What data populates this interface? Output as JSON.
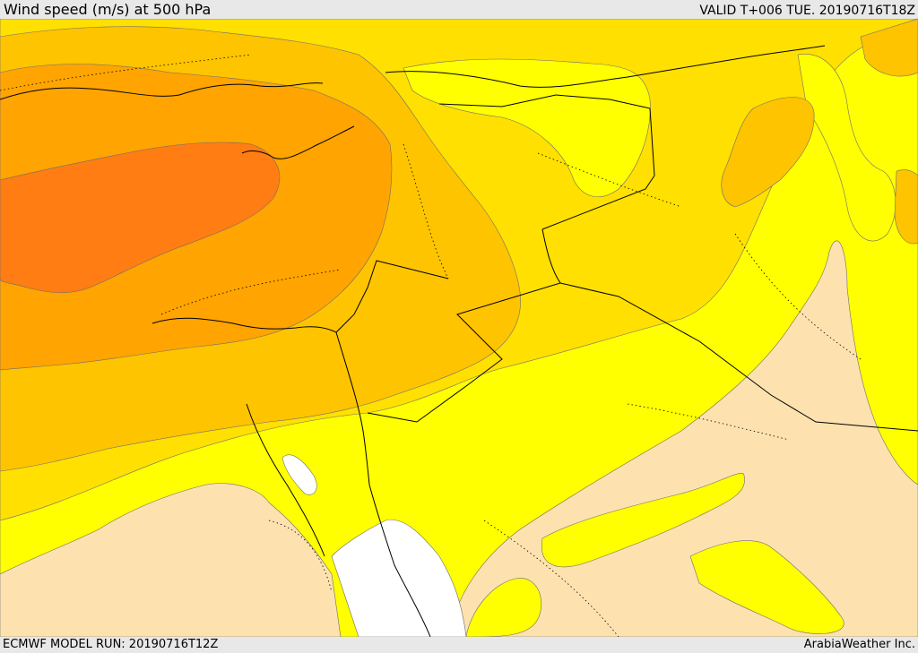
{
  "header": {
    "title": "Wind speed (m/s) at 500 hPa",
    "valid_time": "VALID T+006 TUE. 20190716T18Z"
  },
  "footer": {
    "model_run": "ECMWF MODEL RUN: 20190716T12Z",
    "credit": "ArabiaWeather Inc."
  },
  "map": {
    "fill_colors": {
      "calm": "#ffffff",
      "light": "#fde2b0",
      "yellow": "#ffff00",
      "gold": "#ffe000",
      "amber": "#ffc400",
      "orange": "#ffa400",
      "deep_orange": "#ff7d12"
    },
    "line_color": "#000000"
  }
}
